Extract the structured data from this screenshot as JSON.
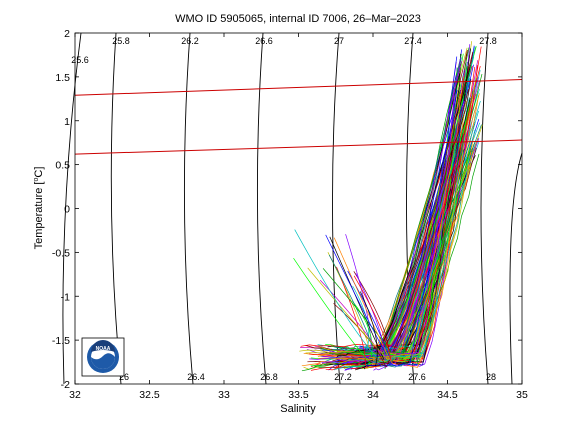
{
  "chart_data": {
    "type": "line",
    "title": "WMO ID 5905065, internal ID 7006, 26–Mar–2023",
    "xlabel": "Salinity",
    "ylabel_main": "Temperature [",
    "ylabel_unit": "o",
    "ylabel_end": "C]",
    "xlim": [
      32,
      35
    ],
    "ylim": [
      -2,
      2
    ],
    "x_ticks": [
      "32",
      "32.5",
      "33",
      "33.5",
      "34",
      "34.5",
      "35"
    ],
    "y_ticks": [
      "2",
      "1.5",
      "1",
      "0.5",
      "0",
      "-0.5",
      "-1",
      "-1.5",
      "-2"
    ],
    "grid": false,
    "density_contours": [
      {
        "label": "25.6",
        "bottom_label": ""
      },
      {
        "label": "25.8",
        "bottom_label": "26"
      },
      {
        "label": "26.2",
        "bottom_label": "26.4"
      },
      {
        "label": "26.6",
        "bottom_label": "26.8"
      },
      {
        "label": "27",
        "bottom_label": "27.2"
      },
      {
        "label": "27.4",
        "bottom_label": "27.6"
      },
      {
        "label": "27.8",
        "bottom_label": "28"
      }
    ],
    "reference_lines": [
      {
        "color": "#cc0000",
        "y_at_xmin": 1.29,
        "y_at_xmax": 1.47
      },
      {
        "color": "#cc0000",
        "y_at_xmin": 0.62,
        "y_at_xmax": 0.78
      }
    ],
    "profiles_description_count": 150
  },
  "logo": {
    "text": "NOAA"
  }
}
